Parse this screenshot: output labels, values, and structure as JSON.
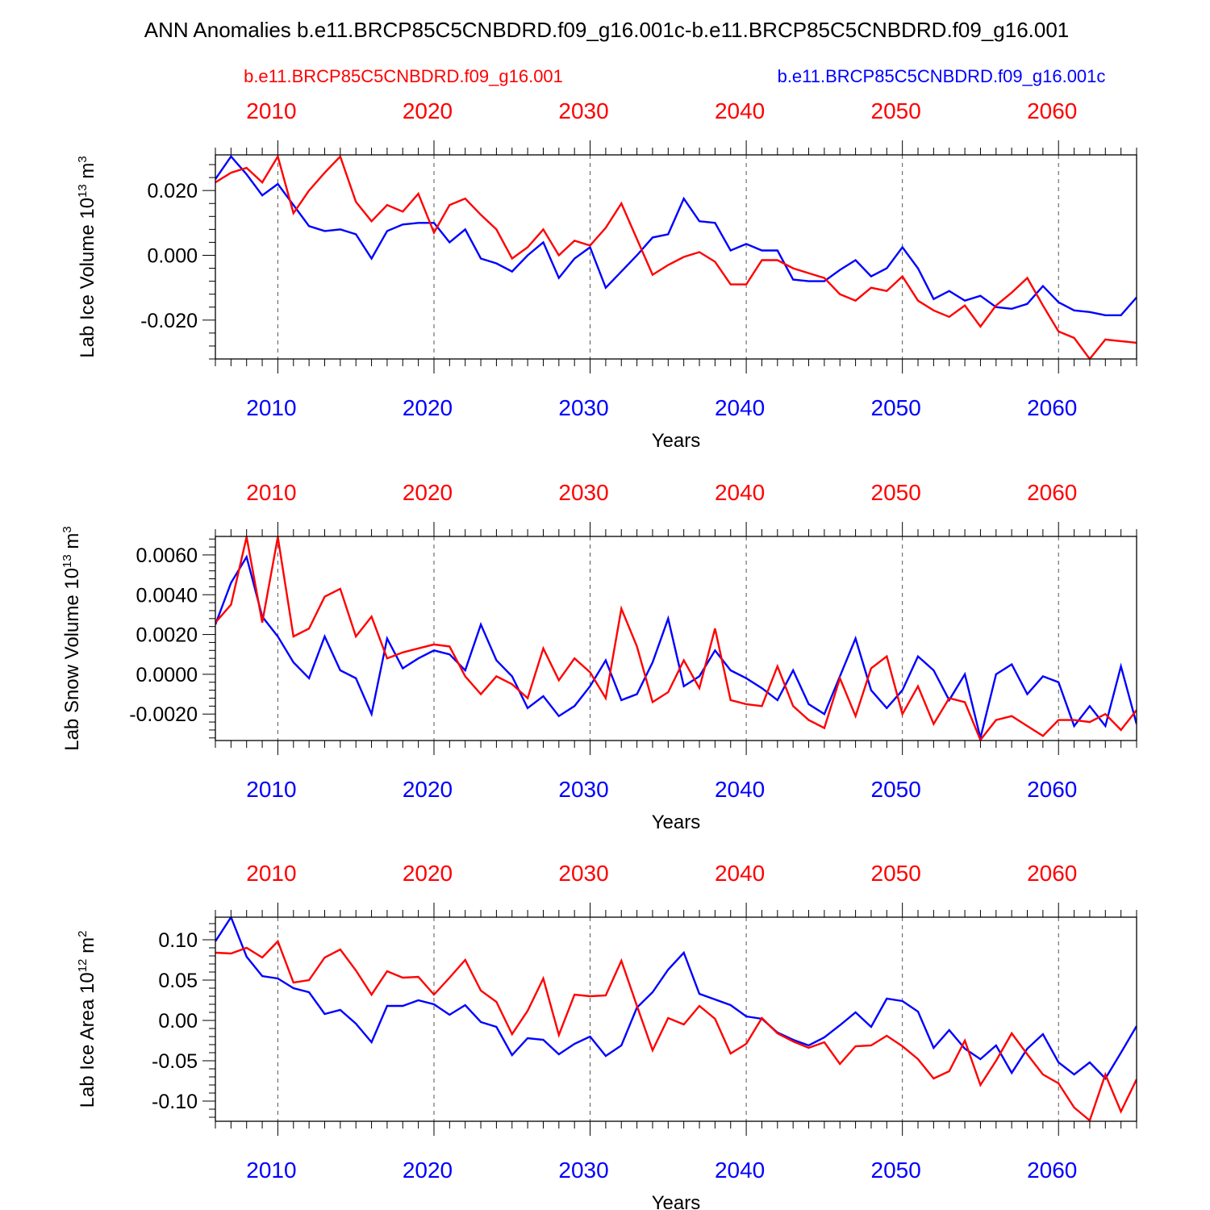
{
  "title": "ANN Anomalies b.e11.BRCP85C5CNBDRD.f09_g16.001c-b.e11.BRCP85C5CNBDRD.f09_g16.001",
  "colors": {
    "red": "#ff0000",
    "blue": "#0000ff"
  },
  "legend": {
    "red_label": "b.e11.BRCP85C5CNBDRD.f09_g16.001",
    "blue_label": "b.e11.BRCP85C5CNBDRD.f09_g16.001c"
  },
  "chart_data": [
    {
      "type": "line",
      "ylabel": "Lab Ice Volume 10",
      "ylabel_exp": "13",
      "ylabel_unit": " m",
      "ylabel_unit_exp": "3",
      "xlabel": "Years",
      "xlim": [
        2006,
        2065
      ],
      "ylim": [
        -0.032,
        0.031
      ],
      "yticks": [
        0.02,
        0.0,
        -0.02
      ],
      "ytick_labels": [
        "0.020",
        "0.000",
        "-0.020"
      ],
      "xticks": [
        2010,
        2020,
        2030,
        2040,
        2050,
        2060
      ],
      "xtick_labels": [
        "2010",
        "2020",
        "2030",
        "2040",
        "2050",
        "2060"
      ],
      "x": [
        2006,
        2007,
        2008,
        2009,
        2010,
        2011,
        2012,
        2013,
        2014,
        2015,
        2016,
        2017,
        2018,
        2019,
        2020,
        2021,
        2022,
        2023,
        2024,
        2025,
        2026,
        2027,
        2028,
        2029,
        2030,
        2031,
        2032,
        2033,
        2034,
        2035,
        2036,
        2037,
        2038,
        2039,
        2040,
        2041,
        2042,
        2043,
        2044,
        2045,
        2046,
        2047,
        2048,
        2049,
        2050,
        2051,
        2052,
        2053,
        2054,
        2055,
        2056,
        2057,
        2058,
        2059,
        2060,
        2061,
        2062,
        2063,
        2064,
        2065
      ],
      "series": [
        {
          "name": "b.e11.BRCP85C5CNBDRD.f09_g16.001",
          "color": "red",
          "values": [
            0.0225,
            0.0255,
            0.027,
            0.0225,
            0.0305,
            0.013,
            0.02,
            0.0255,
            0.0305,
            0.0165,
            0.0105,
            0.0155,
            0.0135,
            0.019,
            0.007,
            0.0155,
            0.0175,
            0.0125,
            0.008,
            -0.001,
            0.0025,
            0.008,
            0.0,
            0.0045,
            0.003,
            0.0085,
            0.016,
            0.005,
            -0.006,
            -0.003,
            -0.0005,
            0.001,
            -0.002,
            -0.009,
            -0.009,
            -0.0015,
            -0.0015,
            -0.004,
            -0.0055,
            -0.007,
            -0.012,
            -0.014,
            -0.01,
            -0.011,
            -0.0065,
            -0.014,
            -0.017,
            -0.019,
            -0.0155,
            -0.022,
            -0.0155,
            -0.0115,
            -0.007,
            -0.0155,
            -0.0235,
            -0.0255,
            -0.032,
            -0.026,
            -0.0265,
            -0.027
          ]
        },
        {
          "name": "b.e11.BRCP85C5CNBDRD.f09_g16.001c",
          "color": "blue",
          "values": [
            0.0235,
            0.0305,
            0.025,
            0.0185,
            0.022,
            0.0155,
            0.009,
            0.0075,
            0.008,
            0.0065,
            -0.001,
            0.0075,
            0.0095,
            0.01,
            0.01,
            0.004,
            0.008,
            -0.001,
            -0.0025,
            -0.005,
            0.0,
            0.004,
            -0.007,
            -0.001,
            0.0025,
            -0.01,
            -0.005,
            0.0,
            0.0055,
            0.0065,
            0.0175,
            0.0105,
            0.01,
            0.0015,
            0.0035,
            0.0015,
            0.0015,
            -0.0075,
            -0.008,
            -0.008,
            -0.0045,
            -0.0015,
            -0.0065,
            -0.004,
            0.0025,
            -0.004,
            -0.0135,
            -0.011,
            -0.014,
            -0.0125,
            -0.016,
            -0.0165,
            -0.015,
            -0.0095,
            -0.0145,
            -0.017,
            -0.0175,
            -0.0185,
            -0.0185,
            -0.013
          ]
        }
      ]
    },
    {
      "type": "line",
      "ylabel": "Lab Snow Volume 10",
      "ylabel_exp": "13",
      "ylabel_unit": " m",
      "ylabel_unit_exp": "3",
      "xlabel": "Years",
      "xlim": [
        2006,
        2065
      ],
      "ylim": [
        -0.00333,
        0.00693
      ],
      "yticks": [
        0.006,
        0.004,
        0.002,
        0.0,
        -0.002
      ],
      "ytick_labels": [
        "0.0060",
        "0.0040",
        "0.0020",
        "0.0000",
        "-0.0020"
      ],
      "xticks": [
        2010,
        2020,
        2030,
        2040,
        2050,
        2060
      ],
      "xtick_labels": [
        "2010",
        "2020",
        "2030",
        "2040",
        "2050",
        "2060"
      ],
      "x": [
        2006,
        2007,
        2008,
        2009,
        2010,
        2011,
        2012,
        2013,
        2014,
        2015,
        2016,
        2017,
        2018,
        2019,
        2020,
        2021,
        2022,
        2023,
        2024,
        2025,
        2026,
        2027,
        2028,
        2029,
        2030,
        2031,
        2032,
        2033,
        2034,
        2035,
        2036,
        2037,
        2038,
        2039,
        2040,
        2041,
        2042,
        2043,
        2044,
        2045,
        2046,
        2047,
        2048,
        2049,
        2050,
        2051,
        2052,
        2053,
        2054,
        2055,
        2056,
        2057,
        2058,
        2059,
        2060,
        2061,
        2062,
        2063,
        2064,
        2065
      ],
      "series": [
        {
          "name": "b.e11.BRCP85C5CNBDRD.f09_g16.001",
          "color": "red",
          "values": [
            0.0026,
            0.0035,
            0.0069,
            0.0026,
            0.0069,
            0.0019,
            0.0023,
            0.0039,
            0.0043,
            0.0019,
            0.0029,
            0.0008,
            0.0011,
            0.0013,
            0.0015,
            0.0014,
            -0.0001,
            -0.001,
            -0.0001,
            -0.0005,
            -0.0012,
            0.0013,
            -0.0003,
            0.0008,
            0.0001,
            -0.0012,
            0.0033,
            0.0014,
            -0.0014,
            -0.0009,
            0.0007,
            -0.0007,
            0.0023,
            -0.0013,
            -0.0015,
            -0.0016,
            0.0004,
            -0.0016,
            -0.0023,
            -0.0027,
            -0.0002,
            -0.0021,
            0.0003,
            0.0009,
            -0.002,
            -0.0006,
            -0.0025,
            -0.0012,
            -0.0014,
            -0.0033,
            -0.0023,
            -0.0021,
            -0.0026,
            -0.0031,
            -0.0023,
            -0.0023,
            -0.0024,
            -0.002,
            -0.0028,
            -0.0018
          ]
        },
        {
          "name": "b.e11.BRCP85C5CNBDRD.f09_g16.001c",
          "color": "blue",
          "values": [
            0.0025,
            0.0046,
            0.0059,
            0.0029,
            0.0019,
            0.0006,
            -0.0002,
            0.0019,
            0.0002,
            -0.0002,
            -0.002,
            0.0018,
            0.0003,
            0.0008,
            0.0012,
            0.001,
            0.0002,
            0.0025,
            0.0007,
            -0.0001,
            -0.0017,
            -0.0011,
            -0.0021,
            -0.0016,
            -0.0006,
            0.0007,
            -0.0013,
            -0.001,
            0.0006,
            0.0028,
            -0.0006,
            -0.0001,
            0.0012,
            0.0002,
            -0.0002,
            -0.0007,
            -0.0013,
            0.0002,
            -0.0015,
            -0.002,
            -0.0001,
            0.0018,
            -0.0008,
            -0.0017,
            -0.0008,
            0.0009,
            0.0002,
            -0.0013,
            0.0,
            -0.0032,
            0.0,
            0.0005,
            -0.001,
            -0.0001,
            -0.0004,
            -0.0026,
            -0.0016,
            -0.0026,
            0.0004,
            -0.0025
          ]
        }
      ]
    },
    {
      "type": "line",
      "ylabel": "Lab Ice Area 10",
      "ylabel_exp": "12",
      "ylabel_unit": " m",
      "ylabel_unit_exp": "2",
      "xlabel": "Years",
      "xlim": [
        2006,
        2065
      ],
      "ylim": [
        -0.125,
        0.128
      ],
      "yticks": [
        0.1,
        0.05,
        0.0,
        -0.05,
        -0.1
      ],
      "ytick_labels": [
        "0.10",
        "0.05",
        "0.00",
        "-0.05",
        "-0.10"
      ],
      "xticks": [
        2010,
        2020,
        2030,
        2040,
        2050,
        2060
      ],
      "xtick_labels": [
        "2010",
        "2020",
        "2030",
        "2040",
        "2050",
        "2060"
      ],
      "x": [
        2006,
        2007,
        2008,
        2009,
        2010,
        2011,
        2012,
        2013,
        2014,
        2015,
        2016,
        2017,
        2018,
        2019,
        2020,
        2021,
        2022,
        2023,
        2024,
        2025,
        2026,
        2027,
        2028,
        2029,
        2030,
        2031,
        2032,
        2033,
        2034,
        2035,
        2036,
        2037,
        2038,
        2039,
        2040,
        2041,
        2042,
        2043,
        2044,
        2045,
        2046,
        2047,
        2048,
        2049,
        2050,
        2051,
        2052,
        2053,
        2054,
        2055,
        2056,
        2057,
        2058,
        2059,
        2060,
        2061,
        2062,
        2063,
        2064,
        2065
      ],
      "series": [
        {
          "name": "b.e11.BRCP85C5CNBDRD.f09_g16.001",
          "color": "red",
          "values": [
            0.084,
            0.083,
            0.09,
            0.078,
            0.098,
            0.047,
            0.05,
            0.078,
            0.088,
            0.062,
            0.032,
            0.061,
            0.053,
            0.054,
            0.032,
            0.053,
            0.075,
            0.037,
            0.023,
            -0.017,
            0.012,
            0.052,
            -0.018,
            0.032,
            0.03,
            0.031,
            0.074,
            0.018,
            -0.037,
            0.003,
            -0.005,
            0.018,
            0.002,
            -0.041,
            -0.029,
            0.003,
            -0.016,
            -0.026,
            -0.034,
            -0.027,
            -0.054,
            -0.032,
            -0.031,
            -0.019,
            -0.032,
            -0.048,
            -0.072,
            -0.063,
            -0.025,
            -0.08,
            -0.05,
            -0.016,
            -0.042,
            -0.067,
            -0.078,
            -0.108,
            -0.124,
            -0.067,
            -0.113,
            -0.073
          ]
        },
        {
          "name": "b.e11.BRCP85C5CNBDRD.f09_g16.001c",
          "color": "blue",
          "values": [
            0.098,
            0.128,
            0.079,
            0.055,
            0.052,
            0.04,
            0.035,
            0.008,
            0.013,
            -0.004,
            -0.027,
            0.018,
            0.018,
            0.025,
            0.02,
            0.007,
            0.019,
            -0.002,
            -0.008,
            -0.043,
            -0.022,
            -0.024,
            -0.042,
            -0.029,
            -0.02,
            -0.044,
            -0.031,
            0.016,
            0.035,
            0.063,
            0.084,
            0.033,
            0.026,
            0.019,
            0.005,
            0.002,
            -0.015,
            -0.024,
            -0.031,
            -0.021,
            -0.006,
            0.01,
            -0.008,
            0.027,
            0.024,
            0.011,
            -0.034,
            -0.012,
            -0.035,
            -0.048,
            -0.031,
            -0.065,
            -0.035,
            -0.017,
            -0.052,
            -0.067,
            -0.052,
            -0.072,
            -0.04,
            -0.007
          ]
        }
      ]
    }
  ]
}
